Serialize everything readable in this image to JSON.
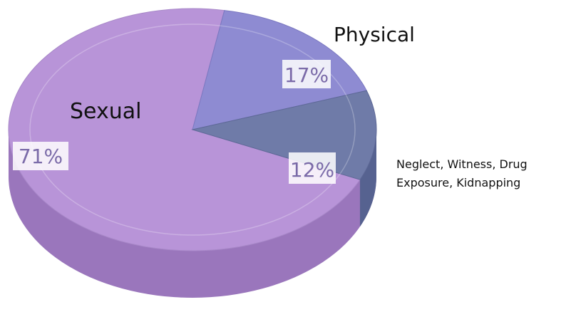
{
  "chart_data": {
    "type": "pie",
    "categories": [
      "Sexual",
      "Physical",
      "Neglect, Witness, Drug Exposure, Kidnapping"
    ],
    "values": [
      71,
      17,
      12
    ],
    "value_labels": [
      "71%",
      "17%",
      "12%"
    ],
    "label_lines": {
      "neglect_line1": "Neglect, Witness, Drug",
      "neglect_line2": "Exposure, Kidnapping"
    },
    "colors": {
      "sexual": "#b894d8",
      "sexual_side": "#9a76bc",
      "physical": "#8e8bd2",
      "physical_side": "#6f6cb4",
      "other": "#6f7ba8",
      "other_side": "#566290"
    },
    "style": "3d-tilted",
    "legend": "none"
  }
}
